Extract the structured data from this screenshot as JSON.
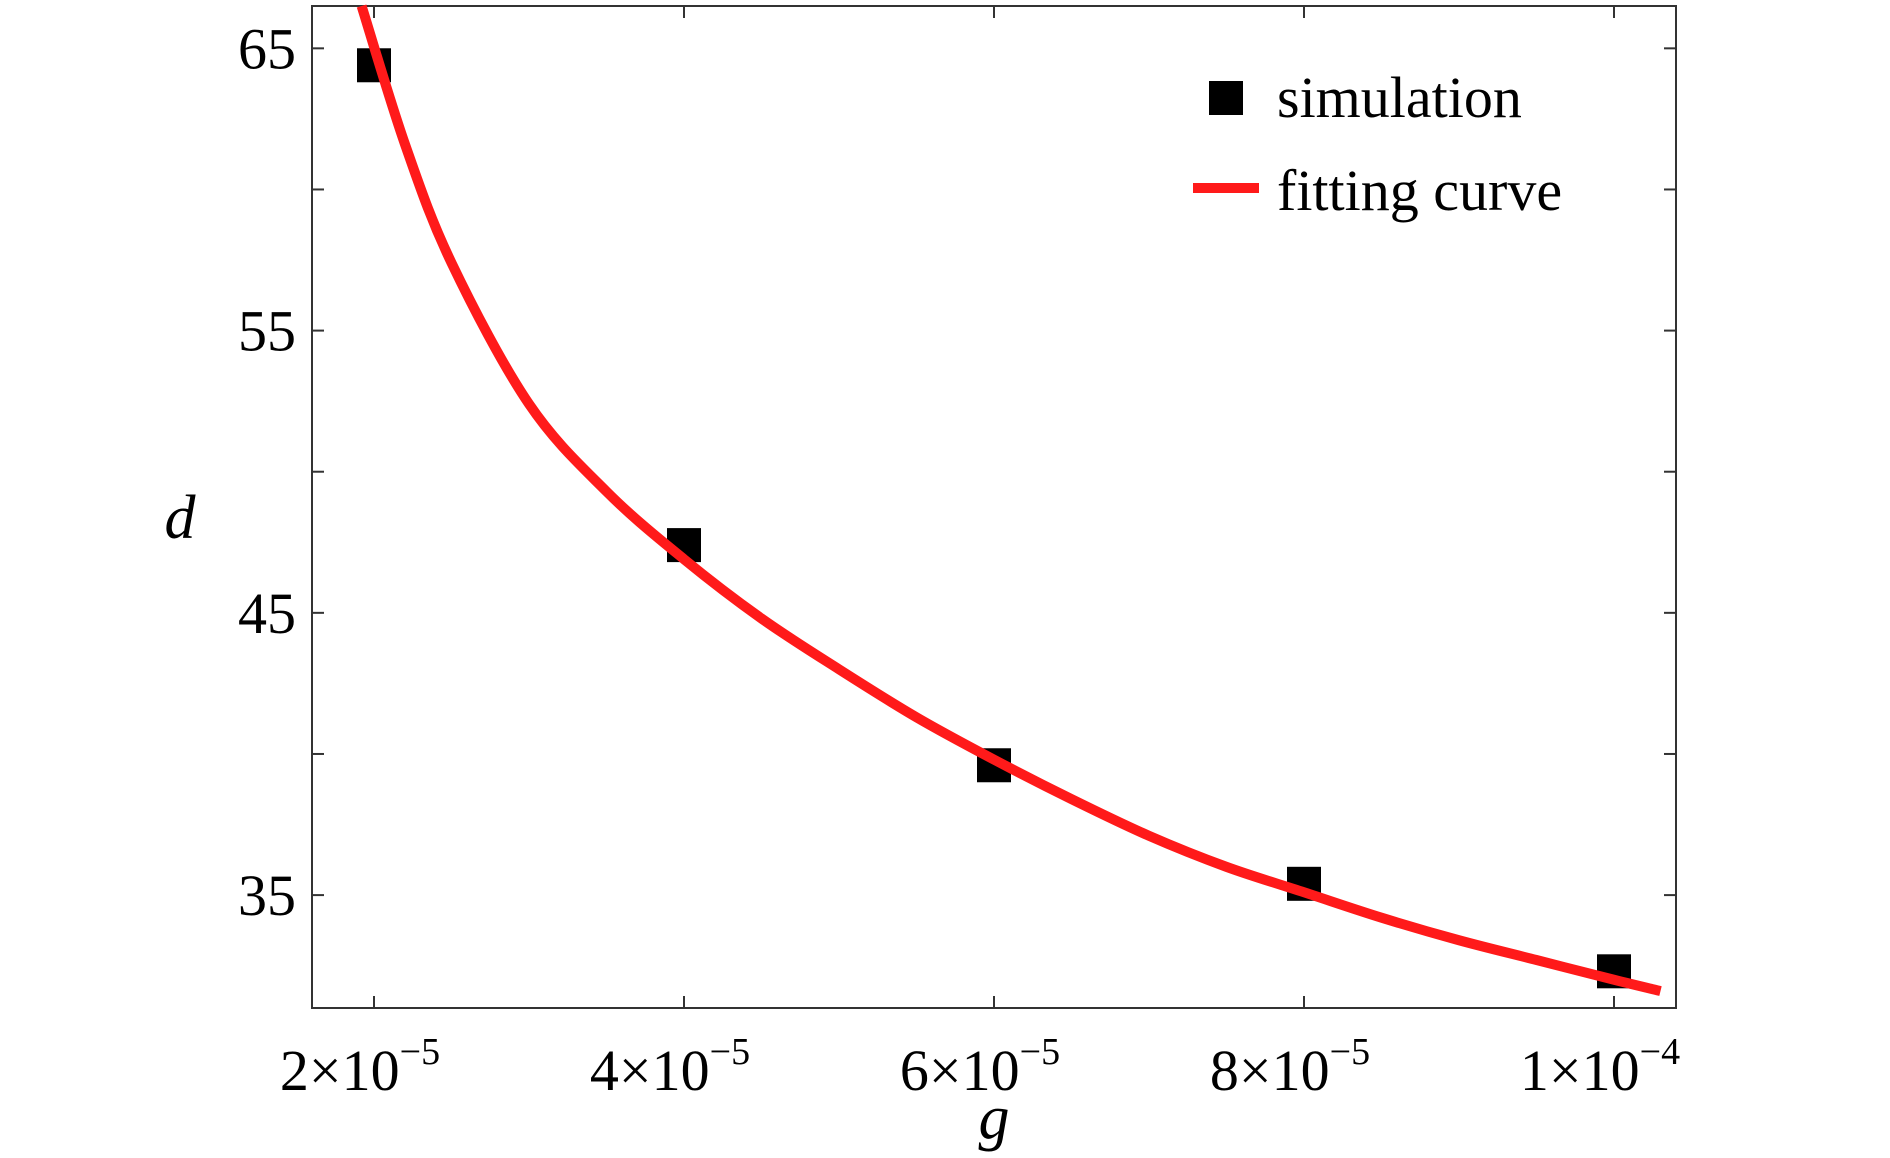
{
  "chart_data": {
    "type": "scatter",
    "title": "",
    "xlabel": "g",
    "ylabel": "d",
    "xlim": [
      1.6e-05,
      0.000104
    ],
    "ylim": [
      31,
      66.5
    ],
    "xticks": [
      {
        "value": 2e-05,
        "mantissa": "2×10",
        "exponent": "−5"
      },
      {
        "value": 4e-05,
        "mantissa": "4×10",
        "exponent": "−5"
      },
      {
        "value": 6e-05,
        "mantissa": "6×10",
        "exponent": "−5"
      },
      {
        "value": 8e-05,
        "mantissa": "8×10",
        "exponent": "−5"
      },
      {
        "value": 0.0001,
        "mantissa": "1×10",
        "exponent": "−4"
      }
    ],
    "yticks_labeled": [
      {
        "value": 35,
        "label": "35"
      },
      {
        "value": 45,
        "label": "45"
      },
      {
        "value": 55,
        "label": "55"
      },
      {
        "value": 65,
        "label": "65"
      }
    ],
    "yticks_minor": [
      40,
      50,
      60
    ],
    "grid": false,
    "legend_position": "top-right",
    "series": [
      {
        "name": "simulation",
        "type": "scatter",
        "marker": "square",
        "color": "#000000",
        "x": [
          2e-05,
          4e-05,
          6e-05,
          8e-05,
          0.0001
        ],
        "y": [
          64.4,
          47.4,
          39.6,
          35.4,
          32.3
        ]
      },
      {
        "name": "fitting curve",
        "type": "line",
        "color": "#ff1a1a",
        "x": [
          1.92e-05,
          2.2e-05,
          2.5e-05,
          3e-05,
          3.5e-05,
          4e-05,
          4.5e-05,
          5e-05,
          5.5e-05,
          6e-05,
          6.5e-05,
          7e-05,
          7.5e-05,
          8e-05,
          8.5e-05,
          9e-05,
          9.5e-05,
          0.0001,
          0.000103
        ],
        "y": [
          66.5,
          61.6,
          57.4,
          52.4,
          49.3,
          46.9,
          44.8,
          43.0,
          41.3,
          39.8,
          38.4,
          37.1,
          36.0,
          35.1,
          34.2,
          33.4,
          32.7,
          32.0,
          31.6
        ]
      }
    ]
  }
}
